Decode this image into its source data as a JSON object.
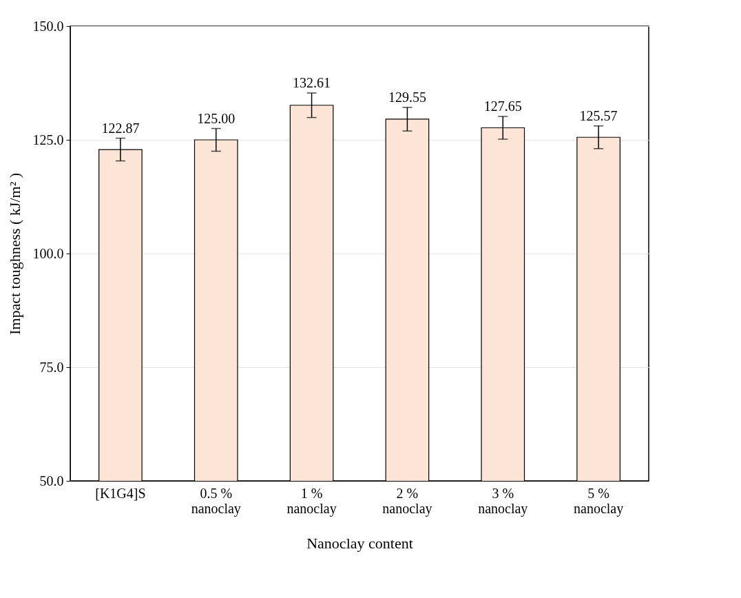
{
  "chart_data": {
    "type": "bar",
    "xlabel": "Nanoclay content",
    "ylabel": "Impact toughness ( kJ/m² )",
    "categories": [
      "[K1G4]S",
      "0.5 % nanoclay",
      "1 % nanoclay",
      "2 % nanoclay",
      "3 % nanoclay",
      "5 % nanoclay"
    ],
    "values": [
      122.87,
      125.0,
      132.61,
      129.55,
      127.65,
      125.57
    ],
    "value_labels": [
      "122.87",
      "125.00",
      "132.61",
      "129.55",
      "127.65",
      "125.57"
    ],
    "errors": [
      2.5,
      2.5,
      2.7,
      2.6,
      2.5,
      2.5
    ],
    "color": "#fce4d6",
    "ylim": [
      50,
      150
    ],
    "yticks": [
      {
        "value": 50,
        "label": "50.0"
      },
      {
        "value": 75,
        "label": "75.0"
      },
      {
        "value": 100,
        "label": "100.0"
      },
      {
        "value": 125,
        "label": "125.0"
      },
      {
        "value": 150,
        "label": "150.0"
      }
    ],
    "grid": "y"
  }
}
